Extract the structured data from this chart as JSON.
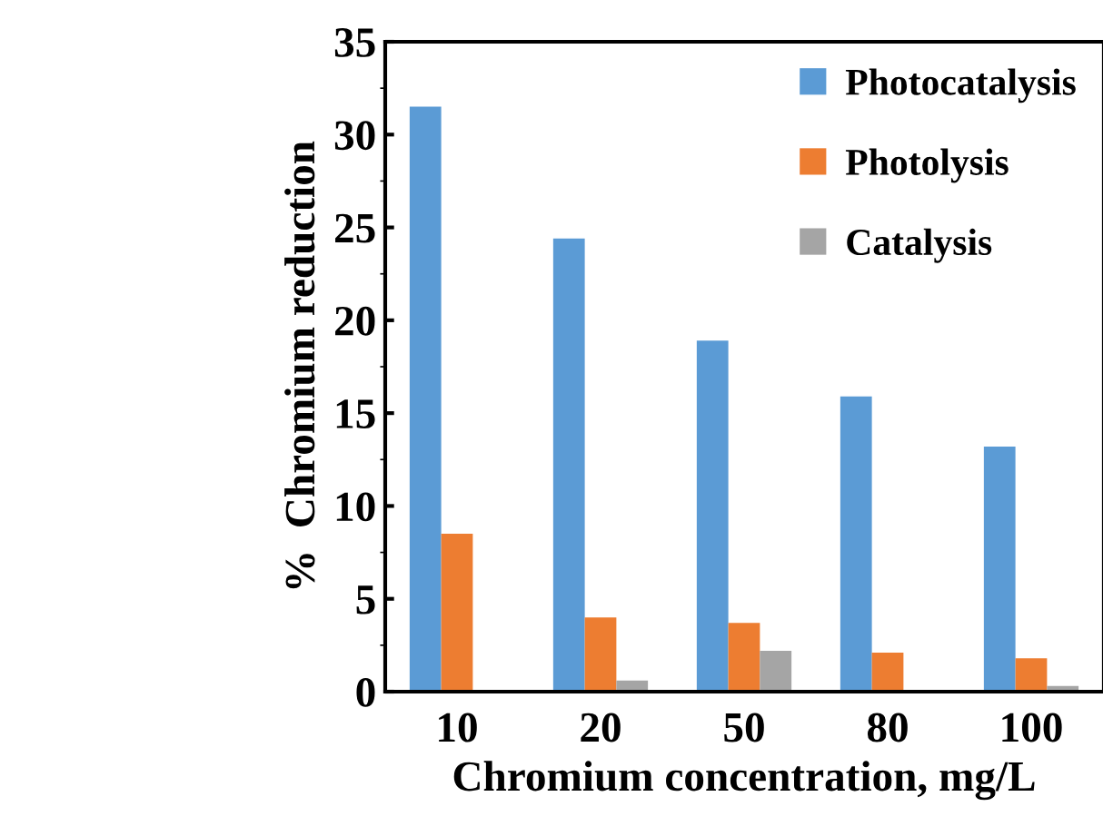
{
  "chart_data": {
    "type": "bar",
    "xlabel": "Chromium concentration, mg/L",
    "ylabel": "%  Chromium reduction",
    "categories": [
      "10",
      "20",
      "50",
      "80",
      "100"
    ],
    "series": [
      {
        "name": "Photocatalysis",
        "color": "#5b9bd5",
        "values": [
          31.5,
          24.4,
          18.9,
          15.9,
          13.2
        ]
      },
      {
        "name": "Photolysis",
        "color": "#ed7d31",
        "values": [
          8.5,
          4.0,
          3.7,
          2.1,
          1.8
        ]
      },
      {
        "name": "Catalysis",
        "color": "#a5a5a5",
        "values": [
          0,
          0.6,
          2.2,
          0,
          0.3
        ]
      }
    ],
    "ylim": [
      0,
      35
    ],
    "yticks": [
      0,
      5,
      10,
      15,
      20,
      25,
      30,
      35
    ],
    "grid": false,
    "legend": "top right"
  }
}
